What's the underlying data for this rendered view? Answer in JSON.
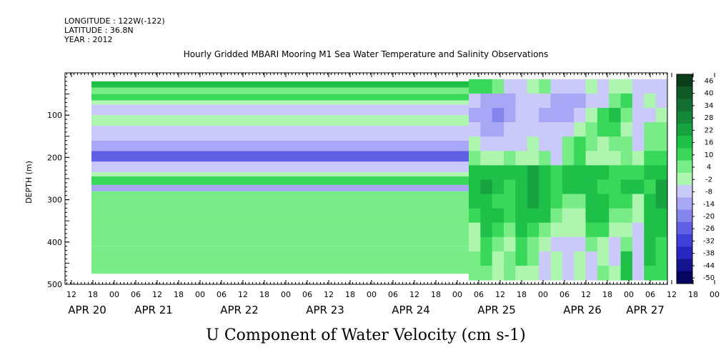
{
  "header": {
    "longitude": "LONGITUDE : 122W(-122)",
    "latitude": "LATITUDE : 36.8N",
    "year": "YEAR : 2012"
  },
  "chart_data": {
    "type": "heatmap",
    "title": "Hourly Gridded MBARI Mooring M1 Sea Water Temperature and Salinity Observations",
    "xlabel": "U Component of Water Velocity (cm s-1)",
    "ylabel": "DEPTH (m)",
    "ylim": [
      500,
      0
    ],
    "y_ticks": [
      100,
      200,
      300,
      400,
      500
    ],
    "x_hour_ticks": [
      "12",
      "18",
      "00",
      "06",
      "12",
      "18",
      "00",
      "06",
      "12",
      "18",
      "00",
      "06",
      "12",
      "18",
      "00",
      "06",
      "12",
      "18",
      "00",
      "06",
      "12",
      "18",
      "00",
      "06",
      "12",
      "18",
      "00",
      "06",
      "12",
      "18",
      "00",
      "06"
    ],
    "x_date_labels": [
      "APR 20",
      "APR 21",
      "APR 22",
      "APR 23",
      "APR 24",
      "APR 25",
      "APR 26",
      "APR 27"
    ],
    "colorbar": {
      "labels": [
        "46",
        "40",
        "34",
        "28",
        "22",
        "16",
        "10",
        "4",
        "-2",
        "-8",
        "-14",
        "-20",
        "-26",
        "-32",
        "-38",
        "-44",
        "-50"
      ],
      "colors": [
        "#0a3d1a",
        "#0f5a26",
        "#137032",
        "#15893a",
        "#17a340",
        "#1ec048",
        "#3ad85a",
        "#78ec86",
        "#aef5b0",
        "#c9c9fa",
        "#a7a7f5",
        "#8585ee",
        "#6060e5",
        "#4040d8",
        "#2828c0",
        "#141490",
        "#050560"
      ]
    },
    "bands": [
      {
        "depth_from": 20,
        "depth_to": 35,
        "value": 16
      },
      {
        "depth_from": 35,
        "depth_to": 50,
        "value": 4
      },
      {
        "depth_from": 50,
        "depth_to": 65,
        "value": 10
      },
      {
        "depth_from": 65,
        "depth_to": 75,
        "value": 2
      },
      {
        "depth_from": 75,
        "depth_to": 100,
        "value": -8
      },
      {
        "depth_from": 100,
        "depth_to": 125,
        "value": 2
      },
      {
        "depth_from": 125,
        "depth_to": 160,
        "value": -8
      },
      {
        "depth_from": 160,
        "depth_to": 185,
        "value": -14
      },
      {
        "depth_from": 185,
        "depth_to": 210,
        "value": -22
      },
      {
        "depth_from": 210,
        "depth_to": 235,
        "value": -8
      },
      {
        "depth_from": 235,
        "depth_to": 245,
        "value": 2
      },
      {
        "depth_from": 245,
        "depth_to": 265,
        "value": 10
      },
      {
        "depth_from": 265,
        "depth_to": 280,
        "value": -14
      },
      {
        "depth_from": 280,
        "depth_to": 320,
        "value": 6
      },
      {
        "depth_from": 320,
        "depth_to": 370,
        "value": 4
      },
      {
        "depth_from": 370,
        "depth_to": 410,
        "value": 6
      },
      {
        "depth_from": 410,
        "depth_to": 475,
        "value": 4
      }
    ],
    "later_grid_rows": [
      [
        10,
        12,
        6,
        -8,
        -8,
        -2,
        4,
        -8,
        -8,
        -8,
        -2,
        -8,
        -2,
        2,
        -8,
        -8,
        -8
      ],
      [
        -8,
        -14,
        -14,
        -14,
        -8,
        -8,
        -8,
        -14,
        -14,
        -14,
        -8,
        -8,
        4,
        10,
        -8,
        -2,
        -8
      ],
      [
        -14,
        -14,
        -20,
        -14,
        -8,
        -8,
        -14,
        -14,
        -14,
        -8,
        -2,
        10,
        16,
        4,
        -8,
        -8,
        -2
      ],
      [
        -8,
        -14,
        -14,
        -8,
        -8,
        -8,
        -8,
        -8,
        -8,
        -2,
        4,
        10,
        10,
        -2,
        -8,
        4,
        4
      ],
      [
        -2,
        -8,
        -8,
        -8,
        -8,
        -2,
        -8,
        -8,
        4,
        10,
        4,
        -2,
        4,
        4,
        -8,
        4,
        4
      ],
      [
        4,
        -2,
        -2,
        4,
        -2,
        -2,
        4,
        -8,
        4,
        10,
        -2,
        -2,
        -2,
        4,
        -2,
        10,
        10
      ],
      [
        16,
        16,
        16,
        16,
        16,
        22,
        16,
        10,
        16,
        16,
        16,
        16,
        10,
        10,
        10,
        16,
        16
      ],
      [
        16,
        22,
        16,
        10,
        16,
        22,
        16,
        10,
        16,
        16,
        16,
        10,
        10,
        16,
        16,
        10,
        22
      ],
      [
        16,
        16,
        10,
        10,
        16,
        22,
        16,
        10,
        4,
        4,
        16,
        16,
        10,
        10,
        -2,
        16,
        22
      ],
      [
        10,
        16,
        16,
        10,
        16,
        16,
        16,
        4,
        -2,
        -2,
        16,
        16,
        4,
        4,
        -2,
        16,
        16
      ],
      [
        -2,
        16,
        10,
        4,
        16,
        10,
        4,
        -2,
        -2,
        -2,
        10,
        10,
        -2,
        -2,
        -8,
        16,
        16
      ],
      [
        -2,
        10,
        4,
        -2,
        10,
        4,
        -2,
        -8,
        -8,
        -8,
        4,
        -2,
        -8,
        4,
        -8,
        16,
        10
      ],
      [
        4,
        10,
        -2,
        4,
        10,
        4,
        -8,
        -2,
        -8,
        -2,
        -8,
        -2,
        -8,
        16,
        -8,
        16,
        10
      ],
      [
        4,
        4,
        -2,
        4,
        -2,
        -2,
        -8,
        -2,
        -8,
        -2,
        -8,
        4,
        -2,
        16,
        -8,
        10,
        10
      ]
    ],
    "later_depth_range": [
      15,
      490
    ]
  }
}
